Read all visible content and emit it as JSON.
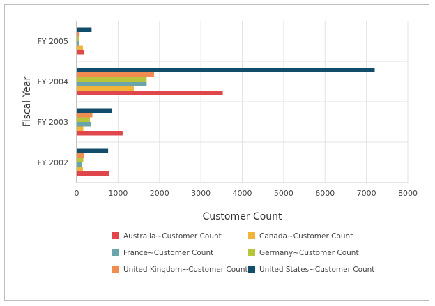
{
  "chart_data": {
    "type": "bar",
    "orientation": "horizontal",
    "xlabel": "Customer Count",
    "ylabel": "Fiscal Year",
    "xlim": [
      0,
      8000
    ],
    "x_ticks": [
      "0",
      "1000",
      "2000",
      "3000",
      "4000",
      "5000",
      "6000",
      "7000",
      "8000"
    ],
    "categories": [
      "FY 2005",
      "FY 2004",
      "FY 2003",
      "FY 2002"
    ],
    "grid": true,
    "legend_position": "bottom",
    "series": [
      {
        "name": "Australia~Customer Count",
        "color": "#e0474c",
        "values": [
          170,
          3530,
          1110,
          780
        ]
      },
      {
        "name": "Canada~Customer Count",
        "color": "#f0b43a",
        "values": [
          150,
          1380,
          160,
          150
        ]
      },
      {
        "name": "France~Customer Count",
        "color": "#6aa6a9",
        "values": [
          50,
          1690,
          340,
          130
        ]
      },
      {
        "name": "Germany~Customer Count",
        "color": "#b8c53a",
        "values": [
          50,
          1690,
          320,
          160
        ]
      },
      {
        "name": "United Kingdom~Customer Count",
        "color": "#f08c50",
        "values": [
          70,
          1870,
          380,
          170
        ]
      },
      {
        "name": "United States~Customer Count",
        "color": "#114c6a",
        "values": [
          360,
          7200,
          850,
          760
        ]
      }
    ]
  }
}
